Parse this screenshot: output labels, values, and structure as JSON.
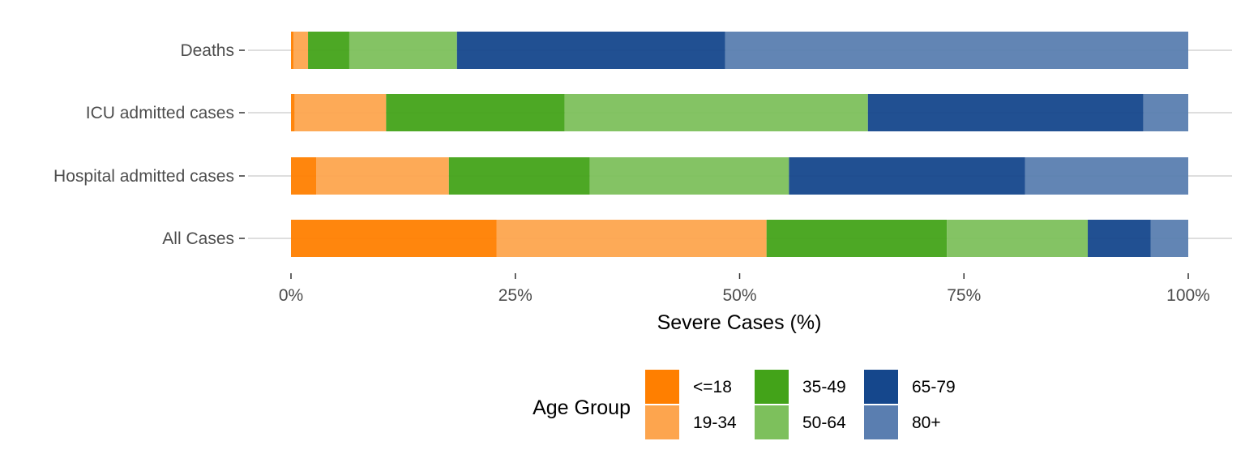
{
  "chart_data": {
    "type": "bar",
    "orientation": "horizontal",
    "stacked": true,
    "categories": [
      "Deaths",
      "ICU admitted cases",
      "Hospital admitted cases",
      "All Cases"
    ],
    "series": [
      {
        "name": "<=18",
        "color": "#FF7F00",
        "values": [
          0.3,
          0.4,
          2.8,
          22.9
        ]
      },
      {
        "name": "19-34",
        "color": "#FDA54E",
        "values": [
          1.6,
          10.2,
          14.8,
          30.1
        ]
      },
      {
        "name": "35-49",
        "color": "#43A319",
        "values": [
          4.6,
          19.9,
          15.7,
          20.1
        ]
      },
      {
        "name": "50-64",
        "color": "#7DC05C",
        "values": [
          12.0,
          33.8,
          22.2,
          15.7
        ]
      },
      {
        "name": "65-79",
        "color": "#15478C",
        "values": [
          29.9,
          30.7,
          26.3,
          7.0
        ]
      },
      {
        "name": "80+",
        "color": "#5A7EB0",
        "values": [
          51.6,
          5.0,
          18.2,
          4.2
        ]
      }
    ],
    "xlabel": "Severe Cases (%)",
    "xlim": [
      0,
      100
    ],
    "xticks": [
      "0%",
      "25%",
      "50%",
      "75%",
      "100%"
    ],
    "grid": "horizontal major gridlines",
    "legend": {
      "title": "Age Group",
      "placement": "bottom",
      "ncol": 3
    }
  }
}
